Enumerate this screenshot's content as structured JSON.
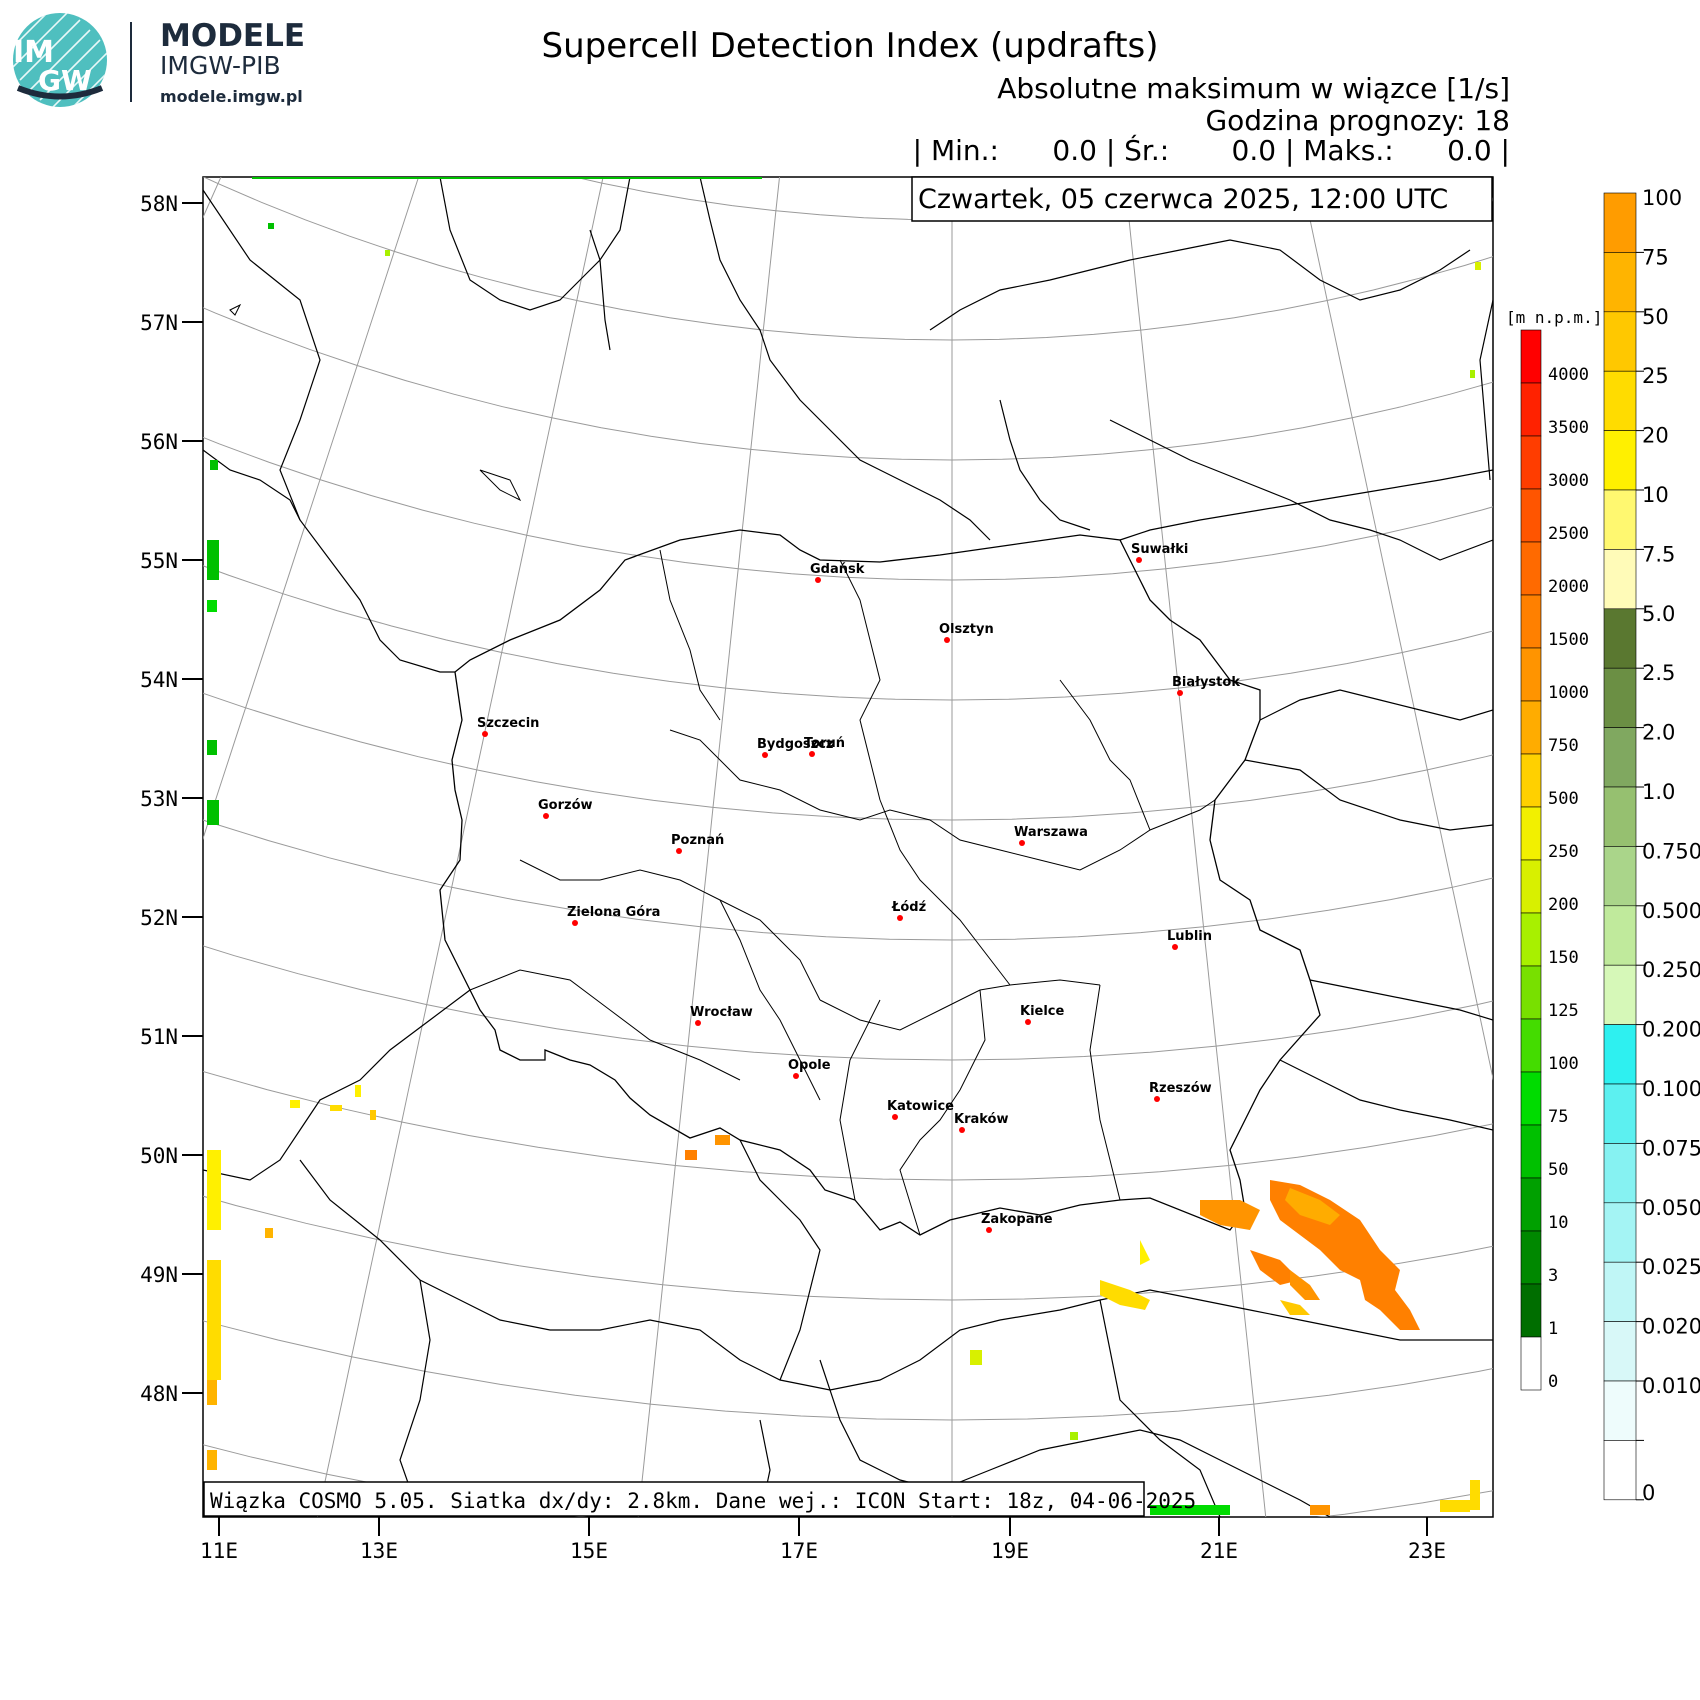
{
  "header": {
    "brand_title": "MODELE",
    "brand_subtitle": "IMGW-PIB",
    "brand_url": "modele.imgw.pl",
    "logo_text_top": "IM",
    "logo_text_bottom": "GW",
    "title": "Supercell Detection Index (updrafts)",
    "subtitle_line1": "Absolutne maksimum w wiązce [1/s]",
    "subtitle_line2": "Godzina prognozy: 18",
    "stats_line": "| Min.:      0.0 | Śr.:       0.0 | Maks.:      0.0 |",
    "date_box": "Czwartek, 05 czerwca 2025, 12:00 UTC"
  },
  "footer_box": "Wiązka COSMO 5.05. Siatka dx/dy: 2.8km. Dane wej.: ICON Start: 18z, 04-06-2025",
  "map": {
    "lat_labels": [
      "58N",
      "57N",
      "56N",
      "55N",
      "54N",
      "53N",
      "52N",
      "51N",
      "50N",
      "49N",
      "48N"
    ],
    "lon_labels": [
      "11E",
      "13E",
      "15E",
      "17E",
      "19E",
      "21E",
      "23E"
    ],
    "cities": [
      {
        "name": "Gdańsk",
        "lon": 18.65,
        "lat": 54.35
      },
      {
        "name": "Suwałki",
        "lon": 22.93,
        "lat": 54.1
      },
      {
        "name": "Olsztyn",
        "lon": 20.48,
        "lat": 53.78
      },
      {
        "name": "Białystok",
        "lon": 23.16,
        "lat": 53.13
      },
      {
        "name": "Szczecin",
        "lon": 14.55,
        "lat": 53.43
      },
      {
        "name": "Bydgoszcz",
        "lon": 18.0,
        "lat": 53.12
      },
      {
        "name": "Toruń",
        "lon": 18.6,
        "lat": 53.01
      },
      {
        "name": "Gorzów",
        "lon": 15.23,
        "lat": 52.73
      },
      {
        "name": "Poznań",
        "lon": 16.93,
        "lat": 52.41
      },
      {
        "name": "Warszawa",
        "lon": 21.01,
        "lat": 52.23
      },
      {
        "name": "Zielona Góra",
        "lon": 15.5,
        "lat": 51.94
      },
      {
        "name": "Łódź",
        "lon": 19.46,
        "lat": 51.76
      },
      {
        "name": "Lublin",
        "lon": 22.57,
        "lat": 51.25
      },
      {
        "name": "Wrocław",
        "lon": 17.03,
        "lat": 51.11
      },
      {
        "name": "Kielce",
        "lon": 20.63,
        "lat": 50.87
      },
      {
        "name": "Opole",
        "lon": 17.93,
        "lat": 50.67
      },
      {
        "name": "Rzeszów",
        "lon": 22.0,
        "lat": 50.04
      },
      {
        "name": "Katowice",
        "lon": 19.02,
        "lat": 50.26
      },
      {
        "name": "Kraków",
        "lon": 19.94,
        "lat": 50.06
      },
      {
        "name": "Zakopane",
        "lon": 19.95,
        "lat": 49.3
      }
    ]
  },
  "colorbars": {
    "elevation": {
      "unit": "[m n.p.m.]",
      "labels": [
        "4000",
        "3500",
        "3000",
        "2500",
        "2000",
        "1500",
        "1000",
        "750",
        "500",
        "250",
        "200",
        "150",
        "125",
        "100",
        "75",
        "50",
        "10",
        "3",
        "1",
        "0"
      ],
      "colors": [
        "#ff0000",
        "#ff2200",
        "#ff3d00",
        "#ff5500",
        "#ff6a00",
        "#ff8000",
        "#ff9400",
        "#ffac00",
        "#ffd000",
        "#f2f000",
        "#d8f000",
        "#a8f000",
        "#78e000",
        "#44dc00",
        "#00dc00",
        "#00c000",
        "#00a000",
        "#008800",
        "#006e00",
        "#ffffff"
      ]
    },
    "sdi": {
      "labels": [
        "100",
        "75",
        "50",
        "25",
        "20",
        "10",
        "7.5",
        "5.0",
        "2.5",
        "2.0",
        "1.0",
        "0.750",
        "0.500",
        "0.250",
        "0.200",
        "0.100",
        "0.075",
        "0.050",
        "0.025",
        "0.020",
        "0.010",
        "0"
      ],
      "colors": [
        "#ff9c00",
        "#ffb400",
        "#ffc800",
        "#ffdc00",
        "#fff000",
        "#fff870",
        "#fffbb8",
        "#5a7830",
        "#6b8f44",
        "#80a860",
        "#96c070",
        "#aad58a",
        "#c0ea9c",
        "#d6f8b8",
        "#2ef0f0",
        "#5cf0f0",
        "#86f2f2",
        "#a4f4f4",
        "#c0f6f6",
        "#d8f8f8",
        "#eefcfc",
        "#ffffff"
      ]
    }
  }
}
